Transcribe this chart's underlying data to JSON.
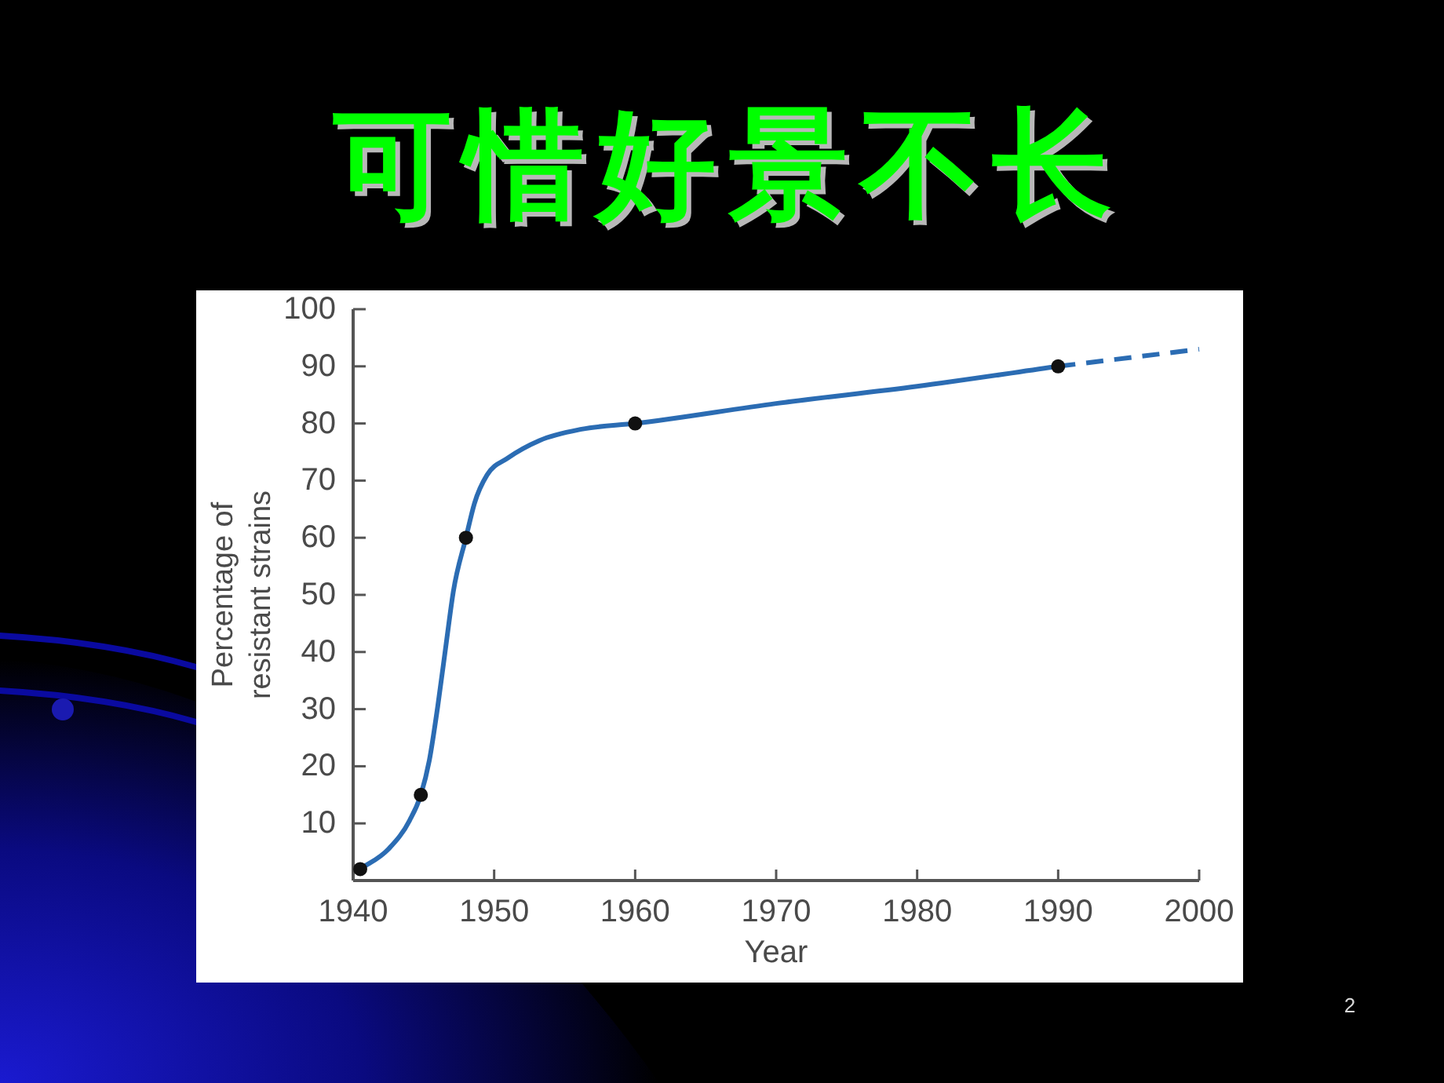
{
  "chart_data": {
    "type": "line",
    "title": "可惜好景不长",
    "xlabel": "Year",
    "ylabel": "Percentage of resistant strains",
    "xlim": [
      1940,
      2000
    ],
    "xticks": [
      1940,
      1950,
      1960,
      1970,
      1980,
      1990,
      2000
    ],
    "ylim": [
      0,
      100
    ],
    "yticks": [
      10,
      20,
      30,
      40,
      50,
      60,
      70,
      80,
      90,
      100
    ],
    "series": [
      {
        "type": "line",
        "color": "#2b6cb3",
        "line_style": "solid",
        "marker": "none",
        "x": [
          1940.5,
          1942.5,
          1944,
          1944.8,
          1945.4,
          1946,
          1946.6,
          1947.1,
          1948,
          1948.6,
          1949.5,
          1951,
          1953.2,
          1956.2,
          1960,
          1970,
          1980,
          1990
        ],
        "values": [
          2,
          5.5,
          10.5,
          15,
          21,
          30.5,
          41.5,
          50.5,
          60,
          66,
          71,
          74,
          77,
          79,
          80,
          83.5,
          86.5,
          90
        ]
      },
      {
        "type": "line",
        "color": "#2b6cb3",
        "line_style": "dashed",
        "marker": "none",
        "x": [
          1990,
          2000
        ],
        "values": [
          90,
          93
        ]
      },
      {
        "type": "scatter",
        "color": "#111111",
        "marker": "circle",
        "x": [
          1940.5,
          1944.8,
          1948,
          1960,
          1990
        ],
        "values": [
          2,
          15,
          60,
          80,
          90
        ]
      }
    ],
    "annotations": [
      "2"
    ]
  }
}
